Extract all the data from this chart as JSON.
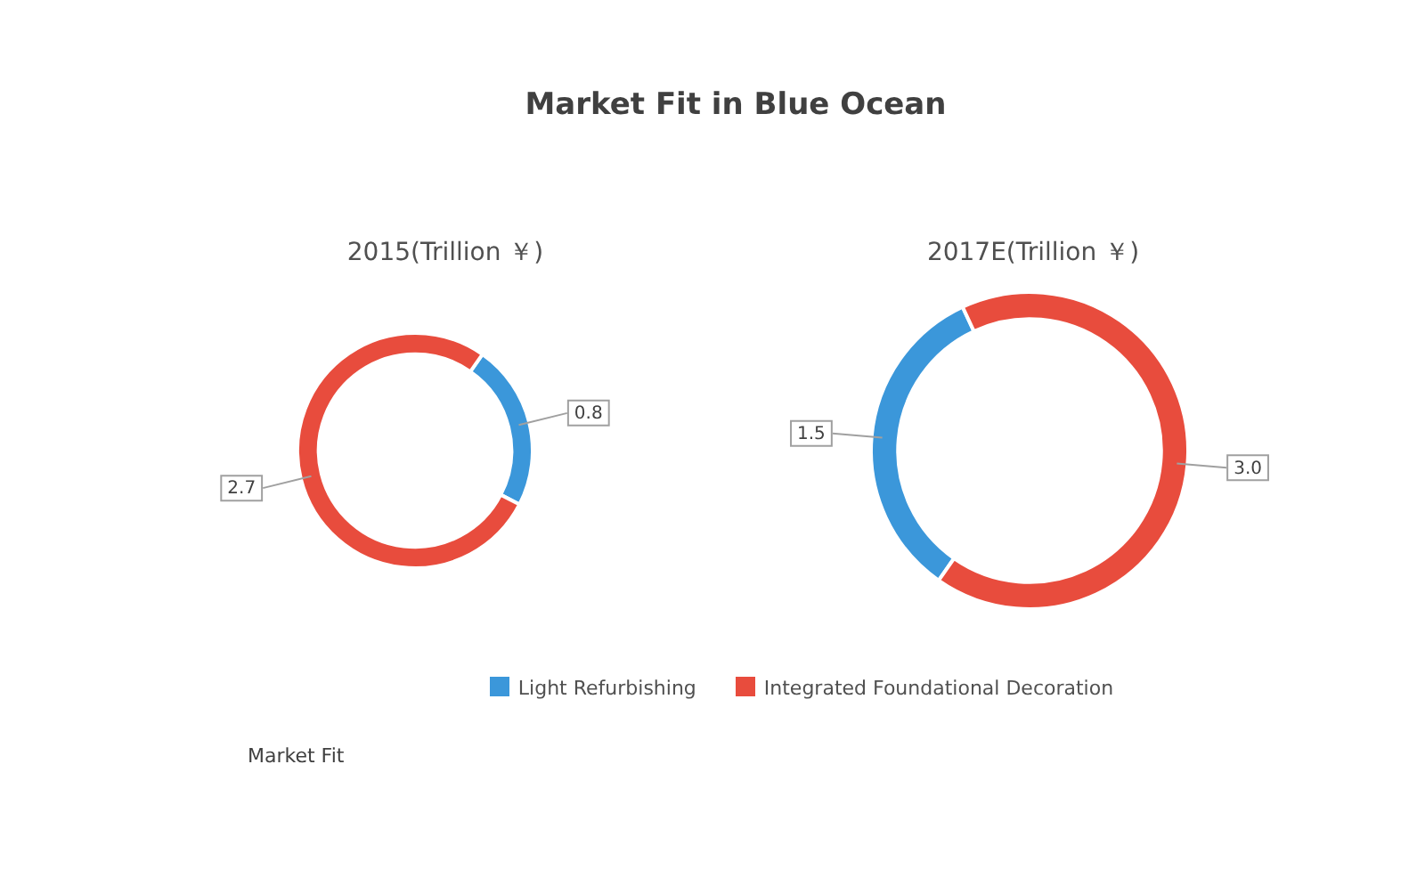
{
  "chart_data": [
    {
      "type": "donut",
      "title": "Market Fit in Blue Ocean",
      "subtitle": "2015(Trillion ￥)",
      "categories": [
        null,
        null
      ],
      "values": [
        0.8,
        2.7
      ],
      "colors": [
        "#3b97da",
        "#e84c3d"
      ],
      "data_labels": true,
      "annotations": [
        "Market Fit"
      ]
    },
    {
      "type": "donut",
      "subtitle": "2017E(Trillion ￥)",
      "categories": [
        "Light Refurbishing",
        "Integrated Foundational Decoration"
      ],
      "values": [
        1.5,
        3.0
      ],
      "value_labels": [
        "1.5",
        "3.0"
      ],
      "colors": [
        "#3b97da",
        "#e84c3d"
      ],
      "legend": "bottom"
    }
  ]
}
